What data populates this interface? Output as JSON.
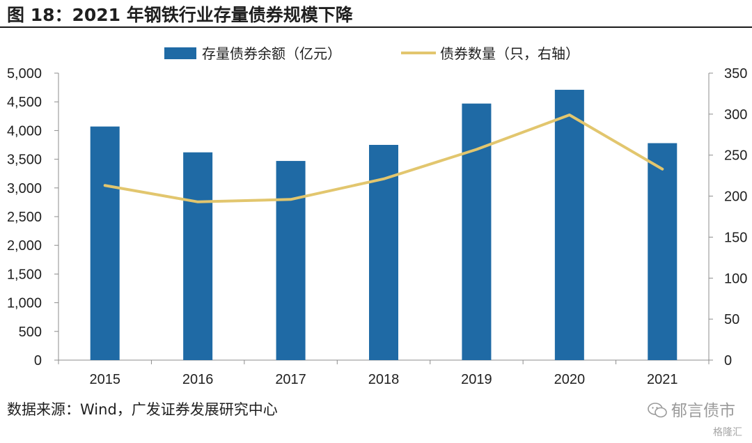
{
  "header": {
    "title": "图 18：2021 年钢铁行业存量债券规模下降"
  },
  "footer": {
    "source": "数据来源：Wind，广发证券发展研究中心"
  },
  "watermark": {
    "text": "郁言债市",
    "subtext": "格隆汇"
  },
  "chart_data": {
    "type": "bar",
    "title": "",
    "categories": [
      "2015",
      "2016",
      "2017",
      "2018",
      "2019",
      "2020",
      "2021"
    ],
    "y_left": {
      "range": [
        0,
        5000
      ],
      "ticks": [
        "0",
        "500",
        "1,000",
        "1,500",
        "2,000",
        "2,500",
        "3,000",
        "3,500",
        "4,000",
        "4,500",
        "5,000"
      ]
    },
    "y_right": {
      "range": [
        0,
        350
      ],
      "ticks": [
        "0",
        "50",
        "100",
        "150",
        "200",
        "250",
        "300",
        "350"
      ]
    },
    "series": [
      {
        "name": "存量债券余额（亿元）",
        "type": "bar",
        "axis": "left",
        "color": "#1f6aa5",
        "values": [
          4070,
          3620,
          3470,
          3750,
          4470,
          4710,
          3780
        ]
      },
      {
        "name": "债券数量（只，右轴）",
        "type": "line",
        "axis": "right",
        "color": "#e2c66e",
        "values": [
          213,
          193,
          196,
          221,
          257,
          299,
          233
        ]
      }
    ],
    "legend": "top-center",
    "grid": false
  }
}
